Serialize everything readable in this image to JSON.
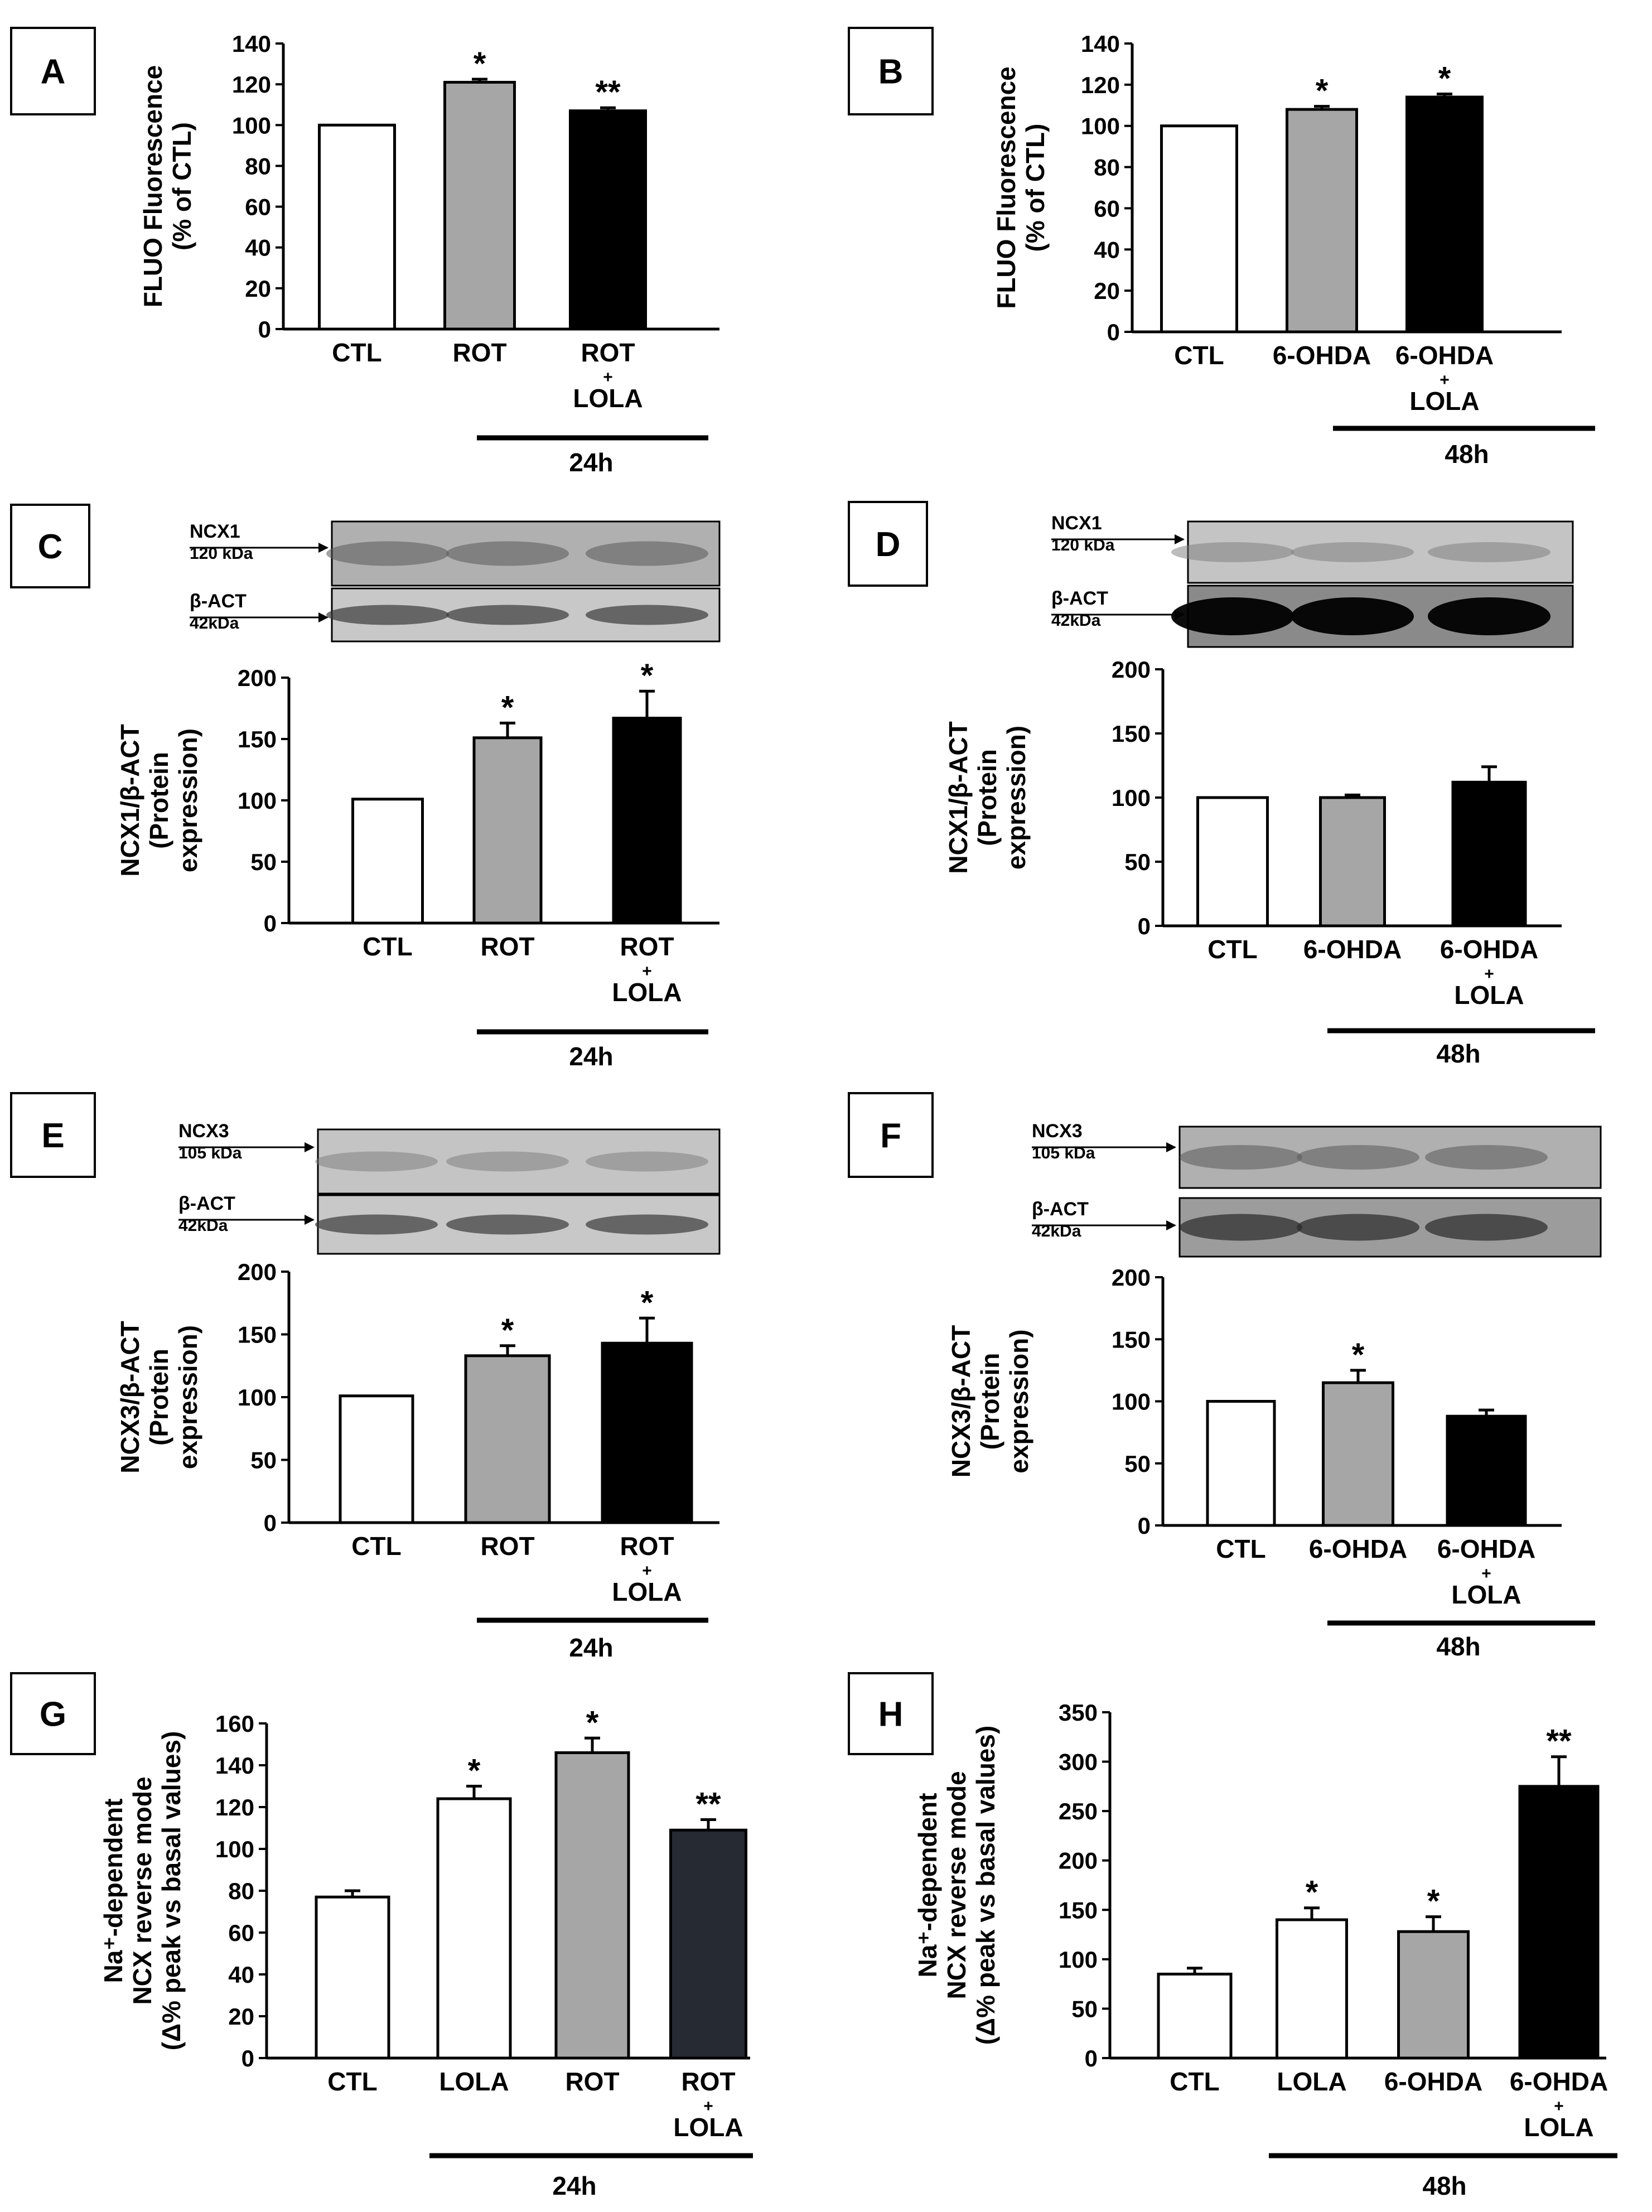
{
  "figure": {
    "colors": {
      "white": "#ffffff",
      "gray": "#a6a6a6",
      "black": "#000000",
      "darkslate": "#252a33"
    }
  },
  "chart_data": [
    {
      "panel": "A",
      "type": "bar",
      "ylabel": [
        "FLUO Fluorescence",
        "(% of CTL)"
      ],
      "ylim": [
        0,
        140
      ],
      "yticks": [
        0,
        20,
        40,
        60,
        80,
        100,
        120,
        140
      ],
      "categories": [
        [
          "CTL"
        ],
        [
          "ROT"
        ],
        [
          "ROT",
          "+",
          "LOLA"
        ]
      ],
      "values": [
        100,
        121,
        107
      ],
      "errors": [
        0,
        1.5,
        1.5
      ],
      "fills": [
        "white",
        "gray",
        "black"
      ],
      "significance": [
        "",
        "*",
        "**"
      ],
      "duration": {
        "label": "24h",
        "from": 1,
        "to": 2
      }
    },
    {
      "panel": "B",
      "type": "bar",
      "ylabel": [
        "FLUO Fluorescence",
        "(% of CTL)"
      ],
      "ylim": [
        0,
        140
      ],
      "yticks": [
        0,
        20,
        40,
        60,
        80,
        100,
        120,
        140
      ],
      "categories": [
        [
          "CTL"
        ],
        [
          "6-OHDA"
        ],
        [
          "6-OHDA",
          "+",
          "LOLA"
        ]
      ],
      "values": [
        100,
        108,
        114
      ],
      "errors": [
        0,
        1.5,
        1.5
      ],
      "fills": [
        "white",
        "gray",
        "black"
      ],
      "significance": [
        "",
        "*",
        "*"
      ],
      "duration": {
        "label": "48h",
        "from": 1,
        "to": 2
      }
    },
    {
      "panel": "C",
      "type": "bar",
      "ylabel": [
        "NCX1/β-ACT",
        "(Protein",
        "expression)"
      ],
      "ylim": [
        0,
        200
      ],
      "yticks": [
        0,
        50,
        100,
        150,
        200
      ],
      "categories": [
        [
          "CTL"
        ],
        [
          "ROT"
        ],
        [
          "ROT",
          "+",
          "LOLA"
        ]
      ],
      "values": [
        101,
        151,
        167
      ],
      "errors": [
        0,
        12,
        22
      ],
      "fills": [
        "white",
        "gray",
        "black"
      ],
      "significance": [
        "",
        "*",
        "*"
      ],
      "duration": {
        "label": "24h",
        "from": 1,
        "to": 2
      },
      "blot": {
        "rows": [
          {
            "name": "NCX1",
            "weight": "120 kDa",
            "style": "ncx"
          },
          {
            "name": "β-ACT",
            "weight": "42kDa",
            "style": "act-light"
          }
        ]
      }
    },
    {
      "panel": "D",
      "type": "bar",
      "ylabel": [
        "NCX1/β-ACT",
        "(Protein",
        "expression)"
      ],
      "ylim": [
        0,
        200
      ],
      "yticks": [
        0,
        50,
        100,
        150,
        200
      ],
      "categories": [
        [
          "CTL"
        ],
        [
          "6-OHDA"
        ],
        [
          "6-OHDA",
          "+",
          "LOLA"
        ]
      ],
      "values": [
        100,
        100,
        112
      ],
      "errors": [
        0,
        2,
        12
      ],
      "fills": [
        "white",
        "gray",
        "black"
      ],
      "significance": [
        "",
        "",
        ""
      ],
      "duration": {
        "label": "48h",
        "from": 1,
        "to": 2
      },
      "blot": {
        "rows": [
          {
            "name": "NCX1",
            "weight": "120 kDa",
            "style": "ncx-light"
          },
          {
            "name": "β-ACT",
            "weight": "42kDa",
            "style": "act-dark"
          }
        ]
      }
    },
    {
      "panel": "E",
      "type": "bar",
      "ylabel": [
        "NCX3/β-ACT",
        "(Protein",
        "expression)"
      ],
      "ylim": [
        0,
        200
      ],
      "yticks": [
        0,
        50,
        100,
        150,
        200
      ],
      "categories": [
        [
          "CTL"
        ],
        [
          "ROT"
        ],
        [
          "ROT",
          "+",
          "LOLA"
        ]
      ],
      "values": [
        101,
        133,
        143
      ],
      "errors": [
        0,
        8,
        20
      ],
      "fills": [
        "white",
        "gray",
        "black"
      ],
      "significance": [
        "",
        "*",
        "*"
      ],
      "duration": {
        "label": "24h",
        "from": 1,
        "to": 2
      },
      "blot": {
        "rows": [
          {
            "name": "NCX3",
            "weight": "105 kDa",
            "style": "ncx-light"
          },
          {
            "name": "β-ACT",
            "weight": "42kDa",
            "style": "act-light"
          }
        ]
      }
    },
    {
      "panel": "F",
      "type": "bar",
      "ylabel": [
        "NCX3/β-ACT",
        "(Protein",
        "expression)"
      ],
      "ylim": [
        0,
        200
      ],
      "yticks": [
        0,
        50,
        100,
        150,
        200
      ],
      "categories": [
        [
          "CTL"
        ],
        [
          "6-OHDA"
        ],
        [
          "6-OHDA",
          "+",
          "LOLA"
        ]
      ],
      "values": [
        100,
        115,
        88
      ],
      "errors": [
        0,
        10,
        5
      ],
      "fills": [
        "white",
        "gray",
        "black"
      ],
      "significance": [
        "",
        "*",
        ""
      ],
      "duration": {
        "label": "48h",
        "from": 1,
        "to": 2
      },
      "blot": {
        "rows": [
          {
            "name": "NCX3",
            "weight": "105 kDa",
            "style": "ncx"
          },
          {
            "name": "β-ACT",
            "weight": "42kDa",
            "style": "act-mid"
          }
        ]
      }
    },
    {
      "panel": "G",
      "type": "bar",
      "ylabel": [
        "Na⁺-dependent",
        "NCX reverse mode",
        "(Δ% peak vs basal values)"
      ],
      "ylim": [
        0,
        160
      ],
      "yticks": [
        0,
        20,
        40,
        60,
        80,
        100,
        120,
        140,
        160
      ],
      "categories": [
        [
          "CTL"
        ],
        [
          "LOLA"
        ],
        [
          "ROT"
        ],
        [
          "ROT",
          "+",
          "LOLA"
        ]
      ],
      "values": [
        77,
        124,
        146,
        109
      ],
      "errors": [
        3,
        6,
        7,
        5
      ],
      "fills": [
        "white",
        "white",
        "gray",
        "darkslate"
      ],
      "significance": [
        "",
        "*",
        "*",
        "**"
      ],
      "duration": {
        "label": "24h",
        "from": 1,
        "to": 3
      }
    },
    {
      "panel": "H",
      "type": "bar",
      "ylabel": [
        "Na⁺-dependent",
        "NCX reverse mode",
        "(Δ% peak vs basal values)"
      ],
      "ylim": [
        0,
        350
      ],
      "yticks": [
        0,
        50,
        100,
        150,
        200,
        250,
        300,
        350
      ],
      "categories": [
        [
          "CTL"
        ],
        [
          "LOLA"
        ],
        [
          "6-OHDA"
        ],
        [
          "6-OHDA",
          "+",
          "LOLA"
        ]
      ],
      "values": [
        85,
        140,
        128,
        275
      ],
      "errors": [
        6,
        12,
        15,
        30
      ],
      "fills": [
        "white",
        "white",
        "gray",
        "black"
      ],
      "significance": [
        "",
        "*",
        "*",
        "**"
      ],
      "duration": {
        "label": "48h",
        "from": 1,
        "to": 3
      }
    }
  ]
}
